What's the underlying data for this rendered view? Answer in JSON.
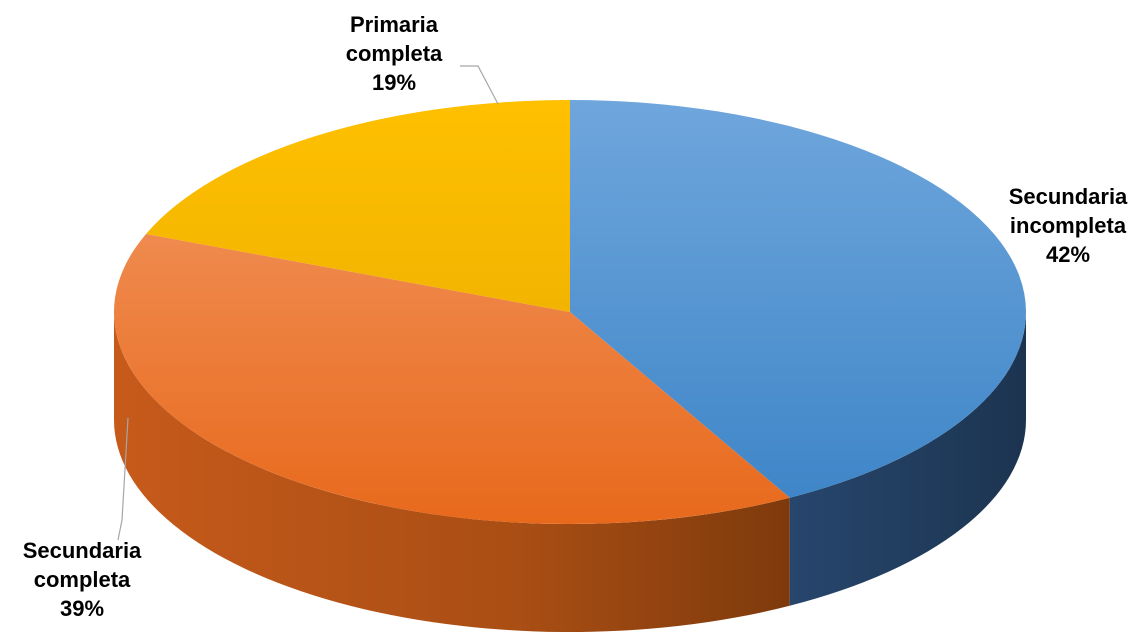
{
  "chart_data": {
    "type": "pie",
    "title": "",
    "style": "3d",
    "slices": [
      {
        "name": "Secundaria incompleta",
        "value": 42,
        "label_lines": [
          "Secundaria",
          "incompleta",
          "42%"
        ],
        "color": "#5B9BD5",
        "side_color": "#1F3A5F"
      },
      {
        "name": "Secundaria completa",
        "value": 39,
        "label_lines": [
          "Secundaria",
          "completa",
          "39%"
        ],
        "color": "#ED7D31",
        "side_color": "#A6521B"
      },
      {
        "name": "Primaria completa",
        "value": 19,
        "label_lines": [
          "Primaria",
          "completa",
          "19%"
        ],
        "color": "#FFC000",
        "side_color": "#B38600"
      }
    ]
  }
}
